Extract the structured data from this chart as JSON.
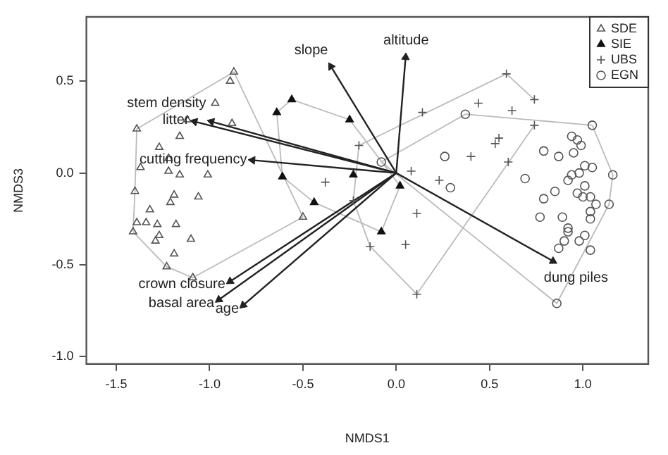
{
  "chart_data": {
    "type": "scatter",
    "xlabel": "NMDS1",
    "ylabel": "NMDS3",
    "xlim": [
      -1.66,
      1.35
    ],
    "ylim": [
      -1.04,
      0.85
    ],
    "xticks": [
      -1.5,
      {
        "value": -1,
        "label": "-1.0"
      },
      -0.5,
      {
        "value": 0,
        "label": "0.0"
      },
      0.5,
      {
        "value": 1,
        "label": "1.0"
      }
    ],
    "yticks": [
      {
        "value": -1,
        "label": "-1.0"
      },
      -0.5,
      {
        "value": 0,
        "label": "0.0"
      },
      0.5
    ],
    "legend": "top right",
    "series": [
      {
        "type": "line",
        "color": "#bbbbbb",
        "marker": "none",
        "x": [
          -1.41,
          -1.4,
          -1.39,
          -0.87,
          -0.5
        ],
        "values": [
          -0.32,
          -0.1,
          0.24,
          0.55,
          -0.24
        ]
      },
      {
        "type": "line",
        "color": "#bbbbbb",
        "marker": "none",
        "x": [
          -1.41,
          -1.23,
          -1.09,
          -0.5
        ],
        "values": [
          -0.32,
          -0.51,
          -0.57,
          -0.24
        ]
      },
      {
        "type": "line",
        "color": "#bbbbbb",
        "marker": "none",
        "x": [
          -0.64,
          -0.56,
          -0.25,
          0.02
        ],
        "values": [
          0.33,
          0.4,
          0.29,
          -0.07
        ]
      },
      {
        "type": "line",
        "color": "#bbbbbb",
        "marker": "none",
        "x": [
          -0.64,
          -0.61,
          -0.44,
          -0.08,
          0.02
        ],
        "values": [
          0.33,
          -0.02,
          -0.16,
          -0.32,
          -0.07
        ]
      },
      {
        "type": "line",
        "color": "#bbbbbb",
        "marker": "none",
        "x": [
          -0.23,
          -0.2,
          0.59,
          0.74
        ],
        "values": [
          -0.15,
          0.15,
          0.54,
          0.4
        ]
      },
      {
        "type": "line",
        "color": "#bbbbbb",
        "marker": "none",
        "x": [
          -0.23,
          -0.14,
          0.11,
          0.74
        ],
        "values": [
          -0.15,
          -0.4,
          -0.66,
          0.26
        ]
      },
      {
        "type": "line",
        "color": "#bbbbbb",
        "marker": "none",
        "x": [
          -0.08,
          0.37,
          1.05,
          1.16
        ],
        "values": [
          0.06,
          0.32,
          0.26,
          -0.01
        ]
      },
      {
        "type": "line",
        "color": "#bbbbbb",
        "marker": "none",
        "x": [
          -0.08,
          0.86,
          1.14,
          1.16
        ],
        "values": [
          0.06,
          -0.71,
          -0.17,
          -0.01
        ]
      },
      {
        "name": "SDE",
        "color": "#555555",
        "marker": "triangle",
        "x": [
          -0.87,
          -0.89,
          -0.97,
          -1.12,
          -0.88,
          -1.39,
          -1.16,
          -1.27,
          -1.22,
          -1.37,
          -1.22,
          -1.16,
          -1.01,
          -1.4,
          -1.19,
          -1.06,
          -1.21,
          -1.32,
          -1.39,
          -1.34,
          -1.28,
          -1.18,
          -1.41,
          -1.27,
          -1.29,
          -1.1,
          -1.19,
          -1.23,
          -1.09,
          -0.5
        ],
        "values": [
          0.55,
          0.5,
          0.38,
          0.29,
          0.27,
          0.24,
          0.2,
          0.14,
          0.08,
          0.03,
          0.01,
          -0.01,
          -0.01,
          -0.1,
          -0.12,
          -0.13,
          -0.16,
          -0.2,
          -0.27,
          -0.27,
          -0.28,
          -0.28,
          -0.32,
          -0.34,
          -0.37,
          -0.36,
          -0.44,
          -0.51,
          -0.57,
          -0.24
        ]
      },
      {
        "name": "SIE",
        "color": "#111111",
        "marker": "triangle",
        "x": [
          -0.56,
          -0.64,
          -0.61,
          -0.44,
          -0.25,
          -0.23,
          0.02,
          -0.08
        ],
        "values": [
          0.4,
          0.33,
          -0.02,
          -0.16,
          0.29,
          -0.01,
          -0.07,
          -0.32
        ]
      },
      {
        "name": "UBS",
        "color": "#555555",
        "marker": "cross",
        "x": [
          0.59,
          0.74,
          0.44,
          0.14,
          0.62,
          0.74,
          -0.2,
          0.55,
          0.53,
          0.4,
          0.6,
          0.08,
          0.23,
          -0.23,
          0.11,
          -0.14,
          0.05,
          0.11,
          -0.38
        ],
        "values": [
          0.54,
          0.4,
          0.38,
          0.33,
          0.34,
          0.26,
          0.15,
          0.19,
          0.16,
          0.09,
          0.06,
          0.01,
          -0.04,
          -0.15,
          -0.22,
          -0.4,
          -0.39,
          -0.66,
          -0.05
        ]
      },
      {
        "name": "EGN",
        "color": "#555555",
        "marker": "circle",
        "x": [
          0.37,
          1.05,
          0.94,
          0.97,
          0.99,
          0.26,
          0.79,
          0.95,
          0.87,
          1.01,
          1.05,
          0.94,
          0.98,
          1.16,
          0.92,
          0.69,
          0.29,
          1.01,
          0.85,
          0.97,
          1.0,
          0.79,
          1.04,
          1.14,
          1.07,
          0.77,
          0.89,
          1.04,
          1.04,
          0.92,
          0.92,
          0.9,
          1.01,
          0.98,
          0.87,
          1.04,
          0.86,
          -0.08
        ],
        "values": [
          0.32,
          0.26,
          0.2,
          0.18,
          0.15,
          0.09,
          0.12,
          0.11,
          0.09,
          0.04,
          0.03,
          -0.01,
          0.0,
          -0.01,
          -0.04,
          -0.03,
          -0.08,
          -0.07,
          -0.1,
          -0.11,
          -0.13,
          -0.14,
          -0.13,
          -0.17,
          -0.17,
          -0.24,
          -0.24,
          -0.21,
          -0.25,
          -0.3,
          -0.32,
          -0.37,
          -0.34,
          -0.37,
          -0.41,
          -0.42,
          -0.71,
          0.06
        ]
      },
      {
        "type": "line",
        "name": "slope",
        "color": "#222222",
        "marker": "triangle",
        "x": [
          -0.35,
          0
        ],
        "values": [
          0.58,
          0
        ]
      },
      {
        "type": "line",
        "name": "altitude",
        "color": "#222222",
        "marker": "triangle",
        "x": [
          0,
          0.05
        ],
        "values": [
          0,
          0.63
        ]
      },
      {
        "type": "line",
        "name": "litter",
        "color": "#222222",
        "marker": "triangle",
        "x": [
          -1.08,
          0
        ],
        "values": [
          0.28,
          0
        ]
      },
      {
        "type": "line",
        "name": "stem density",
        "color": "#222222",
        "marker": "triangle",
        "x": [
          -0.99,
          0
        ],
        "values": [
          0.28,
          0
        ]
      },
      {
        "type": "line",
        "name": "cutting frequency",
        "color": "#222222",
        "marker": "triangle",
        "x": [
          -0.77,
          0
        ],
        "values": [
          0.07,
          0
        ]
      },
      {
        "type": "line",
        "name": "crown closure",
        "color": "#222222",
        "marker": "triangle",
        "x": [
          -0.89,
          0
        ],
        "values": [
          -0.59,
          0
        ]
      },
      {
        "type": "line",
        "name": "basal area",
        "color": "#222222",
        "marker": "triangle",
        "x": [
          -0.95,
          0
        ],
        "values": [
          -0.69,
          0
        ]
      },
      {
        "type": "line",
        "name": "age",
        "color": "#222222",
        "marker": "triangle",
        "x": [
          -0.82,
          0
        ],
        "values": [
          -0.72,
          0
        ]
      },
      {
        "type": "line",
        "name": "dung piles",
        "color": "#222222",
        "marker": "triangle",
        "x": [
          0,
          0.84
        ],
        "values": [
          0,
          -0.48
        ]
      }
    ]
  }
}
